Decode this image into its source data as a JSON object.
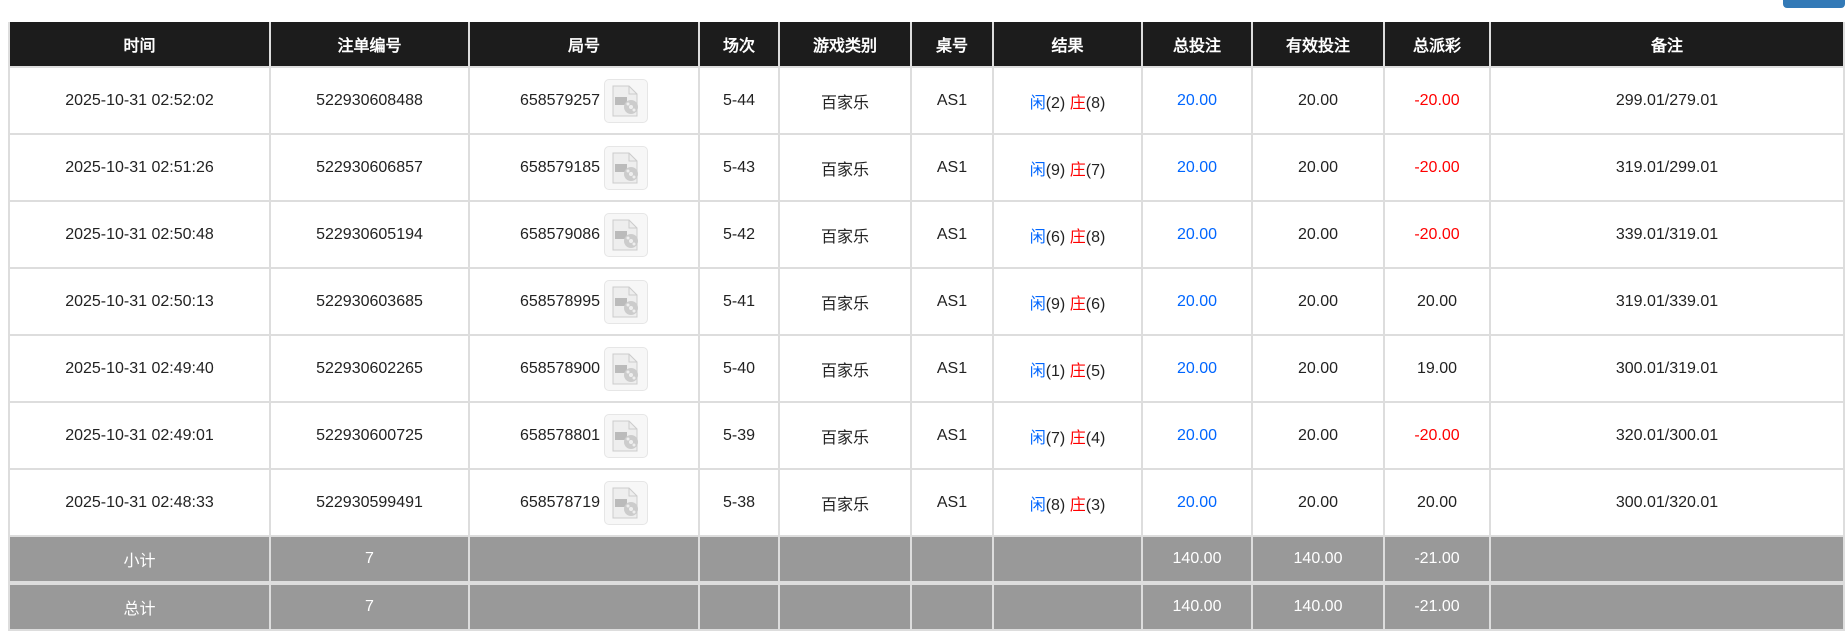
{
  "columns": [
    "时间",
    "注单编号",
    "局号",
    "场次",
    "游戏类别",
    "桌号",
    "结果",
    "总投注",
    "有效投注",
    "总派彩",
    "备注"
  ],
  "rows": [
    {
      "time": "2025-10-31 02:52:02",
      "bet_id": "522930608488",
      "round": "658579257",
      "shoe": "5-44",
      "game": "百家乐",
      "table": "AS1",
      "player_label": "闲",
      "player": "(2)",
      "banker_label": "庄",
      "banker": "(8)",
      "bet": "20.00",
      "valid": "20.00",
      "payout": "-20.00",
      "payout_negative": true,
      "note": "299.01/279.01"
    },
    {
      "time": "2025-10-31 02:51:26",
      "bet_id": "522930606857",
      "round": "658579185",
      "shoe": "5-43",
      "game": "百家乐",
      "table": "AS1",
      "player_label": "闲",
      "player": "(9)",
      "banker_label": "庄",
      "banker": "(7)",
      "bet": "20.00",
      "valid": "20.00",
      "payout": "-20.00",
      "payout_negative": true,
      "note": "319.01/299.01"
    },
    {
      "time": "2025-10-31 02:50:48",
      "bet_id": "522930605194",
      "round": "658579086",
      "shoe": "5-42",
      "game": "百家乐",
      "table": "AS1",
      "player_label": "闲",
      "player": "(6)",
      "banker_label": "庄",
      "banker": "(8)",
      "bet": "20.00",
      "valid": "20.00",
      "payout": "-20.00",
      "payout_negative": true,
      "note": "339.01/319.01"
    },
    {
      "time": "2025-10-31 02:50:13",
      "bet_id": "522930603685",
      "round": "658578995",
      "shoe": "5-41",
      "game": "百家乐",
      "table": "AS1",
      "player_label": "闲",
      "player": "(9)",
      "banker_label": "庄",
      "banker": "(6)",
      "bet": "20.00",
      "valid": "20.00",
      "payout": "20.00",
      "payout_negative": false,
      "note": "319.01/339.01"
    },
    {
      "time": "2025-10-31 02:49:40",
      "bet_id": "522930602265",
      "round": "658578900",
      "shoe": "5-40",
      "game": "百家乐",
      "table": "AS1",
      "player_label": "闲",
      "player": "(1)",
      "banker_label": "庄",
      "banker": "(5)",
      "bet": "20.00",
      "valid": "20.00",
      "payout": "19.00",
      "payout_negative": false,
      "note": "300.01/319.01"
    },
    {
      "time": "2025-10-31 02:49:01",
      "bet_id": "522930600725",
      "round": "658578801",
      "shoe": "5-39",
      "game": "百家乐",
      "table": "AS1",
      "player_label": "闲",
      "player": "(7)",
      "banker_label": "庄",
      "banker": "(4)",
      "bet": "20.00",
      "valid": "20.00",
      "payout": "-20.00",
      "payout_negative": true,
      "note": "320.01/300.01"
    },
    {
      "time": "2025-10-31 02:48:33",
      "bet_id": "522930599491",
      "round": "658578719",
      "shoe": "5-38",
      "game": "百家乐",
      "table": "AS1",
      "player_label": "闲",
      "player": "(8)",
      "banker_label": "庄",
      "banker": "(3)",
      "bet": "20.00",
      "valid": "20.00",
      "payout": "20.00",
      "payout_negative": false,
      "note": "300.01/320.01"
    }
  ],
  "summary": [
    {
      "label": "小计",
      "count": "7",
      "bet": "140.00",
      "valid": "140.00",
      "payout": "-21.00"
    },
    {
      "label": "总计",
      "count": "7",
      "bet": "140.00",
      "valid": "140.00",
      "payout": "-21.00"
    }
  ],
  "icons": {
    "replay": "video-file-icon"
  },
  "colors": {
    "header_bg": "#1c1c1c",
    "summary_bg": "#999999",
    "player": "#0066ff",
    "banker": "#ff0000",
    "negative": "#ff0000",
    "bet": "#0066ff"
  }
}
